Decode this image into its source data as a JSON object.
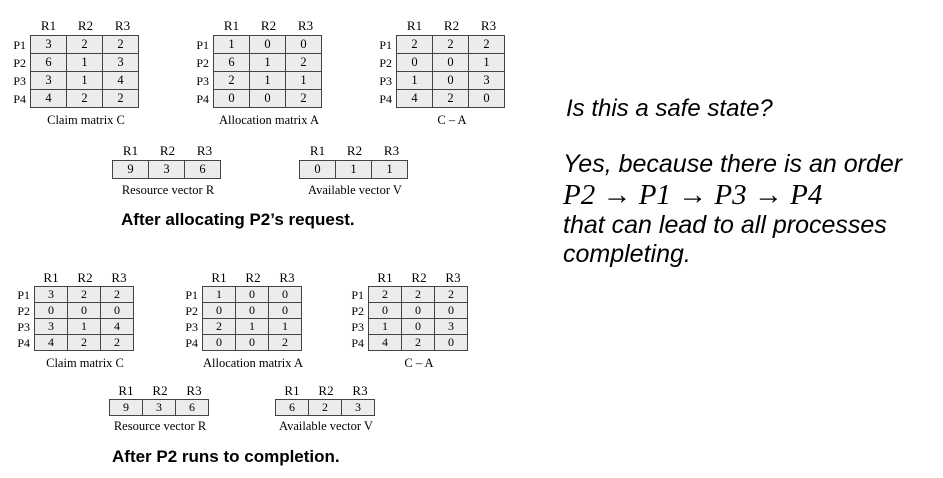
{
  "top": {
    "claim": {
      "title": "Claim matrix C",
      "cols": [
        "R1",
        "R2",
        "R3"
      ],
      "rows": [
        "P1",
        "P2",
        "P3",
        "P4"
      ],
      "cells": [
        [
          "3",
          "2",
          "2"
        ],
        [
          "6",
          "1",
          "3"
        ],
        [
          "3",
          "1",
          "4"
        ],
        [
          "4",
          "2",
          "2"
        ]
      ]
    },
    "alloc": {
      "title": "Allocation matrix A",
      "cols": [
        "R1",
        "R2",
        "R3"
      ],
      "rows": [
        "P1",
        "P2",
        "P3",
        "P4"
      ],
      "cells": [
        [
          "1",
          "0",
          "0"
        ],
        [
          "6",
          "1",
          "2"
        ],
        [
          "2",
          "1",
          "1"
        ],
        [
          "0",
          "0",
          "2"
        ]
      ]
    },
    "cminusa": {
      "title": "C – A",
      "cols": [
        "R1",
        "R2",
        "R3"
      ],
      "rows": [
        "P1",
        "P2",
        "P3",
        "P4"
      ],
      "cells": [
        [
          "2",
          "2",
          "2"
        ],
        [
          "0",
          "0",
          "1"
        ],
        [
          "1",
          "0",
          "3"
        ],
        [
          "4",
          "2",
          "0"
        ]
      ]
    },
    "resource": {
      "title": "Resource vector R",
      "cols": [
        "R1",
        "R2",
        "R3"
      ],
      "cells": [
        "9",
        "3",
        "6"
      ]
    },
    "available": {
      "title": "Available vector V",
      "cols": [
        "R1",
        "R2",
        "R3"
      ],
      "cells": [
        "0",
        "1",
        "1"
      ]
    },
    "caption": "After allocating P2’s request."
  },
  "bottom": {
    "claim": {
      "title": "Claim matrix C",
      "cols": [
        "R1",
        "R2",
        "R3"
      ],
      "rows": [
        "P1",
        "P2",
        "P3",
        "P4"
      ],
      "cells": [
        [
          "3",
          "2",
          "2"
        ],
        [
          "0",
          "0",
          "0"
        ],
        [
          "3",
          "1",
          "4"
        ],
        [
          "4",
          "2",
          "2"
        ]
      ]
    },
    "alloc": {
      "title": "Allocation matrix A",
      "cols": [
        "R1",
        "R2",
        "R3"
      ],
      "rows": [
        "P1",
        "P2",
        "P3",
        "P4"
      ],
      "cells": [
        [
          "1",
          "0",
          "0"
        ],
        [
          "0",
          "0",
          "0"
        ],
        [
          "2",
          "1",
          "1"
        ],
        [
          "0",
          "0",
          "2"
        ]
      ]
    },
    "cminusa": {
      "title": "C – A",
      "cols": [
        "R1",
        "R2",
        "R3"
      ],
      "rows": [
        "P1",
        "P2",
        "P3",
        "P4"
      ],
      "cells": [
        [
          "2",
          "2",
          "2"
        ],
        [
          "0",
          "0",
          "0"
        ],
        [
          "1",
          "0",
          "3"
        ],
        [
          "4",
          "2",
          "0"
        ]
      ]
    },
    "resource": {
      "title": "Resource vector R",
      "cols": [
        "R1",
        "R2",
        "R3"
      ],
      "cells": [
        "9",
        "3",
        "6"
      ]
    },
    "available": {
      "title": "Available vector V",
      "cols": [
        "R1",
        "R2",
        "R3"
      ],
      "cells": [
        "6",
        "2",
        "3"
      ]
    },
    "caption": "After P2 runs to completion."
  },
  "text": {
    "question": "Is this a safe state?",
    "answer_intro": "Yes, because there is an order",
    "order": "P2 → P1 → P3 → P4",
    "answer_rest_1": "that can lead to all processes",
    "answer_rest_2": "completing."
  }
}
